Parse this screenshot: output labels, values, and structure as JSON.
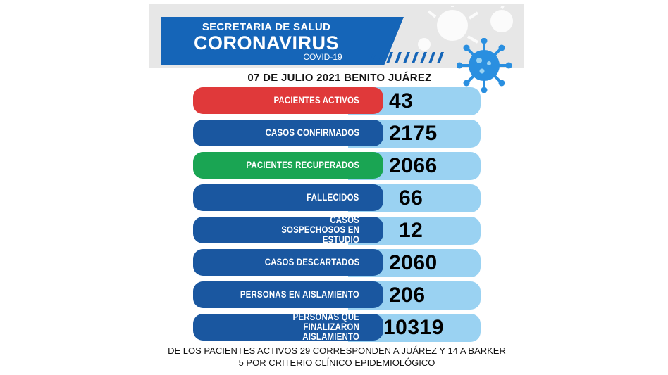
{
  "header": {
    "line1": "SECRETARIA DE SALUD",
    "line2": "CORONAVIRUS",
    "line3": "COVID-19"
  },
  "date_line": "07 DE JULIO 2021 BENITO JUÁREZ",
  "stats": [
    {
      "label": "PACIENTES ACTIVOS",
      "value": "43",
      "color": "#e0393a"
    },
    {
      "label": "CASOS CONFIRMADOS",
      "value": "2175",
      "color": "#1a57a0"
    },
    {
      "label": "PACIENTES RECUPERADOS",
      "value": "2066",
      "color": "#1aa553"
    },
    {
      "label": "FALLECIDOS",
      "value": "66",
      "color": "#1a57a0"
    },
    {
      "label": "CASOS SOSPECHOSOS EN ESTUDIO",
      "value": "12",
      "color": "#1a57a0"
    },
    {
      "label": "CASOS DESCARTADOS",
      "value": "2060",
      "color": "#1a57a0"
    },
    {
      "label": "PERSONAS EN AISLAMIENTO",
      "value": "206",
      "color": "#1a57a0"
    },
    {
      "label": "PERSONAS QUE FINALIZARON AISLAMIENTO",
      "value": "10319",
      "color": "#1a57a0"
    }
  ],
  "footer": {
    "line1": "DE LOS PACIENTES ACTIVOS  29 CORRESPONDEN A JUÁREZ Y 14 A BARKER",
    "line2": "5 POR CRITERIO CLÍNICO EPIDEMIOLÓGICO"
  },
  "colors": {
    "title_blue": "#1565b8",
    "value_light_blue": "#9ad2f2",
    "virus_blue": "#2a8fe0"
  },
  "icons": [
    "coronavirus-icon"
  ]
}
